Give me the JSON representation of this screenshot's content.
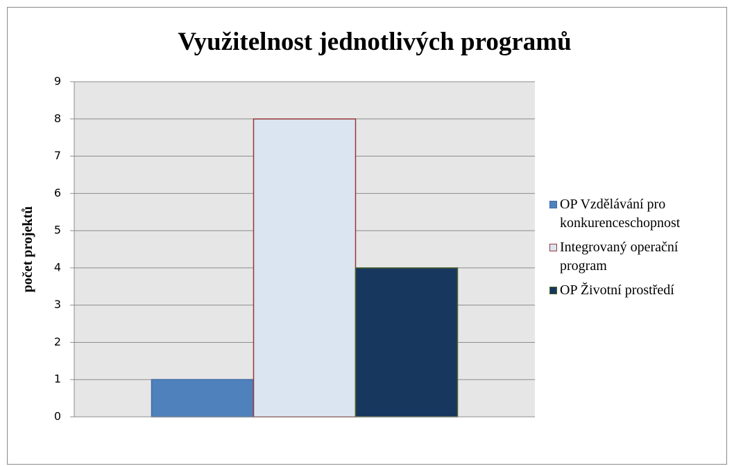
{
  "chart_data": {
    "type": "bar",
    "title": "Využitelnost jednotlivých programů",
    "ylabel": "počet projektů",
    "categories": [
      null
    ],
    "series": [
      {
        "name": "OP Vzdělávání pro konkurenceschopnost",
        "color": "#4f81bd",
        "edgecolor": "#3b6aa3",
        "values": [
          1
        ]
      },
      {
        "name": "Integrovaný operační program",
        "color": "#dbe5f1",
        "edgecolor": "#953735",
        "values": [
          8
        ]
      },
      {
        "name": "OP Životní prostředí",
        "color": "#17375e",
        "edgecolor": "#4f6228",
        "values": [
          4
        ]
      }
    ],
    "ylim": [
      0,
      9
    ],
    "yticks": [
      0,
      1,
      2,
      3,
      4,
      5,
      6,
      7,
      8,
      9
    ],
    "grid": true,
    "legend": "right"
  }
}
